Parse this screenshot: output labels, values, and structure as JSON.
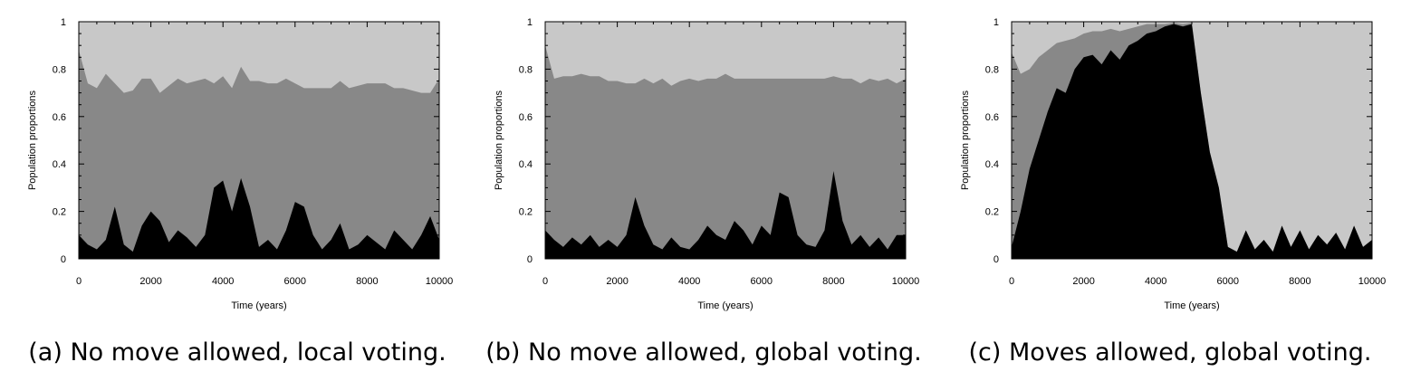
{
  "chart_data": [
    {
      "type": "area",
      "caption": "(a) No move allowed, local voting.",
      "xlabel": "Time (years)",
      "ylabel": "Population proportions",
      "xlim": [
        0,
        10000
      ],
      "ylim": [
        0,
        1
      ],
      "xticks": [
        0,
        2000,
        4000,
        6000,
        8000,
        10000
      ],
      "yticks": [
        0,
        0.2,
        0.4,
        0.6,
        0.8,
        1
      ],
      "ytick_labels": [
        "0",
        "0.2",
        "0.4",
        "0.6",
        "0.8",
        "1"
      ],
      "colors": [
        "#000000",
        "#888888",
        "#c8c8c8"
      ],
      "x": [
        0,
        250,
        500,
        750,
        1000,
        1250,
        1500,
        1750,
        2000,
        2250,
        2500,
        2750,
        3000,
        3250,
        3500,
        3750,
        4000,
        4250,
        4500,
        4750,
        5000,
        5250,
        5500,
        5750,
        6000,
        6250,
        6500,
        6750,
        7000,
        7250,
        7500,
        7750,
        8000,
        8250,
        8500,
        8750,
        9000,
        9250,
        9500,
        9750,
        10000
      ],
      "series": [
        {
          "values": [
            0.1,
            0.06,
            0.04,
            0.08,
            0.22,
            0.06,
            0.03,
            0.14,
            0.2,
            0.16,
            0.07,
            0.12,
            0.09,
            0.05,
            0.1,
            0.3,
            0.33,
            0.2,
            0.34,
            0.22,
            0.05,
            0.08,
            0.04,
            0.12,
            0.24,
            0.22,
            0.1,
            0.04,
            0.08,
            0.15,
            0.04,
            0.06,
            0.1,
            0.07,
            0.04,
            0.12,
            0.08,
            0.04,
            0.1,
            0.18,
            0.08
          ]
        },
        {
          "values": [
            0.78,
            0.68,
            0.68,
            0.7,
            0.52,
            0.64,
            0.68,
            0.62,
            0.56,
            0.54,
            0.66,
            0.64,
            0.65,
            0.7,
            0.66,
            0.44,
            0.44,
            0.52,
            0.47,
            0.53,
            0.7,
            0.66,
            0.7,
            0.64,
            0.5,
            0.5,
            0.62,
            0.68,
            0.64,
            0.6,
            0.68,
            0.67,
            0.64,
            0.67,
            0.7,
            0.6,
            0.64,
            0.67,
            0.6,
            0.52,
            0.68
          ]
        }
      ]
    },
    {
      "type": "area",
      "caption": "(b) No move allowed, global voting.",
      "xlabel": "Time (years)",
      "ylabel": "Population proportions",
      "xlim": [
        0,
        10000
      ],
      "ylim": [
        0,
        1
      ],
      "xticks": [
        0,
        2000,
        4000,
        6000,
        8000,
        10000
      ],
      "yticks": [
        0,
        0.2,
        0.4,
        0.6,
        0.8,
        1
      ],
      "ytick_labels": [
        "0",
        "0.2",
        "0.4",
        "0.6",
        "0.8",
        "1"
      ],
      "colors": [
        "#000000",
        "#888888",
        "#c8c8c8"
      ],
      "x": [
        0,
        250,
        500,
        750,
        1000,
        1250,
        1500,
        1750,
        2000,
        2250,
        2500,
        2750,
        3000,
        3250,
        3500,
        3750,
        4000,
        4250,
        4500,
        4750,
        5000,
        5250,
        5500,
        5750,
        6000,
        6250,
        6500,
        6750,
        7000,
        7250,
        7500,
        7750,
        8000,
        8250,
        8500,
        8750,
        9000,
        9250,
        9500,
        9750,
        10000
      ],
      "series": [
        {
          "values": [
            0.12,
            0.08,
            0.05,
            0.09,
            0.06,
            0.1,
            0.05,
            0.08,
            0.05,
            0.1,
            0.26,
            0.14,
            0.06,
            0.04,
            0.09,
            0.05,
            0.04,
            0.08,
            0.14,
            0.1,
            0.08,
            0.16,
            0.12,
            0.06,
            0.14,
            0.1,
            0.28,
            0.26,
            0.1,
            0.06,
            0.05,
            0.12,
            0.37,
            0.16,
            0.06,
            0.1,
            0.05,
            0.09,
            0.04,
            0.1,
            0.1
          ]
        },
        {
          "values": [
            0.78,
            0.68,
            0.72,
            0.68,
            0.72,
            0.67,
            0.72,
            0.67,
            0.7,
            0.64,
            0.48,
            0.62,
            0.68,
            0.72,
            0.64,
            0.7,
            0.72,
            0.67,
            0.62,
            0.66,
            0.7,
            0.6,
            0.64,
            0.7,
            0.62,
            0.66,
            0.48,
            0.5,
            0.66,
            0.7,
            0.71,
            0.64,
            0.4,
            0.6,
            0.7,
            0.64,
            0.71,
            0.66,
            0.72,
            0.64,
            0.66
          ]
        }
      ]
    },
    {
      "type": "area",
      "caption": "(c) Moves allowed, global voting.",
      "xlabel": "Time (years)",
      "ylabel": "Population proportions",
      "xlim": [
        0,
        10000
      ],
      "ylim": [
        0,
        1
      ],
      "xticks": [
        0,
        2000,
        4000,
        6000,
        8000,
        10000
      ],
      "yticks": [
        0,
        0.2,
        0.4,
        0.6,
        0.8,
        1
      ],
      "ytick_labels": [
        "0",
        "0.2",
        "0.4",
        "0.6",
        "0.8",
        "1"
      ],
      "colors": [
        "#000000",
        "#888888",
        "#c8c8c8"
      ],
      "x": [
        0,
        250,
        500,
        750,
        1000,
        1250,
        1500,
        1750,
        2000,
        2250,
        2500,
        2750,
        3000,
        3250,
        3500,
        3750,
        4000,
        4250,
        4500,
        4750,
        5000,
        5250,
        5500,
        5750,
        6000,
        6250,
        6500,
        6750,
        7000,
        7250,
        7500,
        7750,
        8000,
        8250,
        8500,
        8750,
        9000,
        9250,
        9500,
        9750,
        10000
      ],
      "series": [
        {
          "values": [
            0.05,
            0.2,
            0.38,
            0.5,
            0.62,
            0.72,
            0.7,
            0.8,
            0.85,
            0.86,
            0.82,
            0.88,
            0.84,
            0.9,
            0.92,
            0.95,
            0.96,
            0.98,
            0.99,
            0.98,
            0.99,
            0.7,
            0.45,
            0.3,
            0.05,
            0.03,
            0.12,
            0.04,
            0.08,
            0.03,
            0.14,
            0.05,
            0.12,
            0.04,
            0.1,
            0.06,
            0.11,
            0.04,
            0.14,
            0.05,
            0.08
          ]
        },
        {
          "values": [
            0.82,
            0.58,
            0.42,
            0.35,
            0.26,
            0.19,
            0.22,
            0.13,
            0.1,
            0.1,
            0.14,
            0.09,
            0.12,
            0.07,
            0.06,
            0.04,
            0.03,
            0.01,
            0.005,
            0.01,
            0.005,
            0,
            0,
            0,
            0,
            0,
            0,
            0,
            0,
            0,
            0,
            0,
            0,
            0,
            0,
            0,
            0,
            0,
            0,
            0,
            0
          ]
        }
      ]
    }
  ]
}
